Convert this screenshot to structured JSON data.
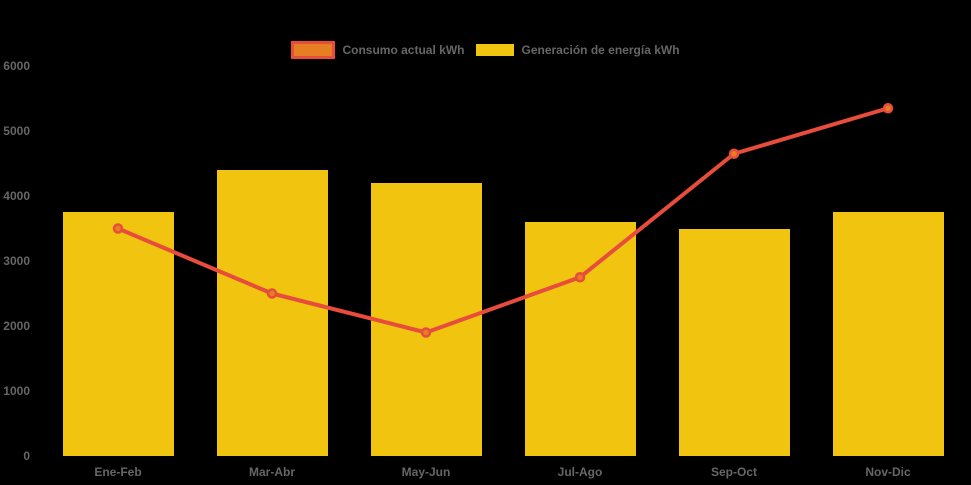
{
  "chart_data": {
    "type": "bar",
    "subtype": "bar-line-combo",
    "categories": [
      "Ene-Feb",
      "Mar-Abr",
      "May-Jun",
      "Jul-Ago",
      "Sep-Oct",
      "Nov-Dic"
    ],
    "series": [
      {
        "name": "Consumo actual kWh",
        "type": "line",
        "values": [
          3500,
          2500,
          1900,
          2750,
          4650,
          5350
        ],
        "line_color": "#e74c3c",
        "point_fill_color": "#e67e22"
      },
      {
        "name": "Generación de energía kWh",
        "type": "bar",
        "values": [
          3750,
          4400,
          4200,
          3600,
          3500,
          3750
        ],
        "color": "#f1c40f"
      }
    ],
    "ylim": [
      0,
      6000
    ],
    "yticks": [
      "0",
      "1000",
      "2000",
      "3000",
      "4000",
      "5000",
      "6000"
    ],
    "legend_position": "top",
    "grid": false,
    "background_color": "#000000",
    "text_color": "#666666"
  }
}
